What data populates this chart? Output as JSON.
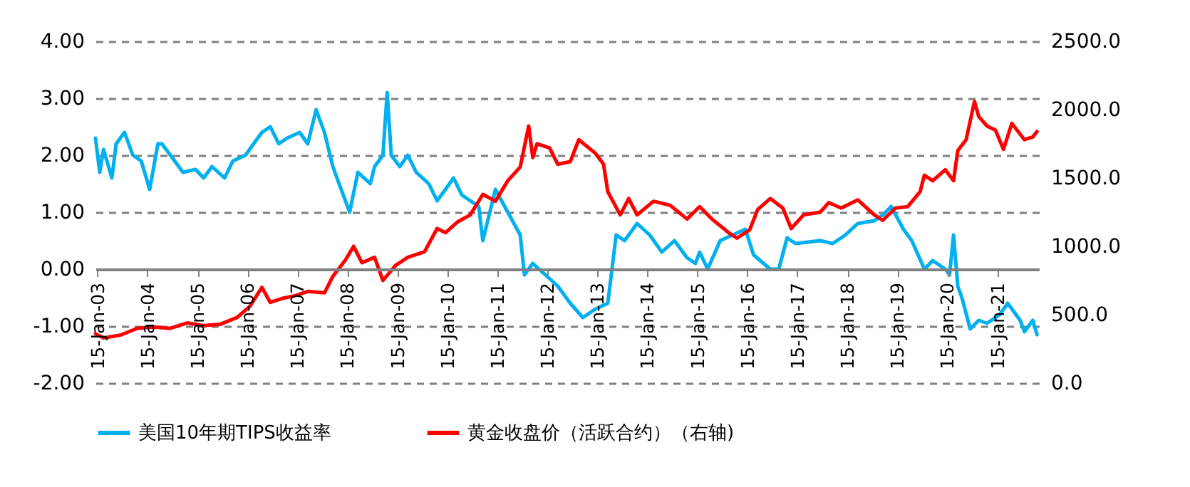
{
  "chart_data": {
    "type": "line",
    "grid": "y",
    "legend": "bottom",
    "line_style": "solid",
    "marker": "none",
    "xlim": [
      "2003-01-01",
      "2021-11-15"
    ],
    "xticks": [
      {
        "value": "2003-01-15",
        "label": "15-Jan-03"
      },
      {
        "value": "2004-01-15",
        "label": "15-Jan-04"
      },
      {
        "value": "2005-01-15",
        "label": "15-Jan-05"
      },
      {
        "value": "2006-01-15",
        "label": "15-Jan-06"
      },
      {
        "value": "2007-01-15",
        "label": "15-Jan-07"
      },
      {
        "value": "2008-01-15",
        "label": "15-Jan-08"
      },
      {
        "value": "2009-01-15",
        "label": "15-Jan-09"
      },
      {
        "value": "2010-01-15",
        "label": "15-Jan-10"
      },
      {
        "value": "2011-01-15",
        "label": "15-Jan-11"
      },
      {
        "value": "2012-01-15",
        "label": "15-Jan-12"
      },
      {
        "value": "2013-01-15",
        "label": "15-Jan-13"
      },
      {
        "value": "2014-01-15",
        "label": "15-Jan-14"
      },
      {
        "value": "2015-01-15",
        "label": "15-Jan-15"
      },
      {
        "value": "2016-01-15",
        "label": "15-Jan-16"
      },
      {
        "value": "2017-01-15",
        "label": "15-Jan-17"
      },
      {
        "value": "2018-01-15",
        "label": "15-Jan-18"
      },
      {
        "value": "2019-01-15",
        "label": "15-Jan-19"
      },
      {
        "value": "2020-01-15",
        "label": "15-Jan-20"
      },
      {
        "value": "2021-01-15",
        "label": "15-Jan-21"
      }
    ],
    "ylim": [
      -2,
      4
    ],
    "yticks": [
      {
        "value": -2,
        "label": "-2.00"
      },
      {
        "value": -1,
        "label": "-1.00"
      },
      {
        "value": 0,
        "label": "0.00"
      },
      {
        "value": 1,
        "label": "1.00"
      },
      {
        "value": 2,
        "label": "2.00"
      },
      {
        "value": 3,
        "label": "3.00"
      },
      {
        "value": 4,
        "label": "4.00"
      }
    ],
    "y2lim": [
      0,
      2500
    ],
    "y2ticks": [
      {
        "value": 0,
        "label": "0.0"
      },
      {
        "value": 500,
        "label": "500.0"
      },
      {
        "value": 1000,
        "label": "1000.0"
      },
      {
        "value": 1500,
        "label": "1500.0"
      },
      {
        "value": 2000,
        "label": "2000.0"
      },
      {
        "value": 2500,
        "label": "2500.0"
      }
    ],
    "series": [
      {
        "name": "美国10年期TIPS收益率",
        "color": "#00b0f0",
        "x": [
          "2003-01",
          "2003-02",
          "2003-03",
          "2003-05",
          "2003-06",
          "2003-08",
          "2003-10",
          "2003-12",
          "2004-02",
          "2004-04",
          "2004-05",
          "2004-08",
          "2004-10",
          "2005-01",
          "2005-03",
          "2005-05",
          "2005-08",
          "2005-10",
          "2006-01",
          "2006-03",
          "2006-05",
          "2006-07",
          "2006-09",
          "2006-11",
          "2007-02",
          "2007-04",
          "2007-06",
          "2007-08",
          "2007-10",
          "2007-12",
          "2008-02",
          "2008-04",
          "2008-07",
          "2008-08",
          "2008-10",
          "2008-11",
          "2008-12",
          "2009-02",
          "2009-04",
          "2009-06",
          "2009-09",
          "2009-11",
          "2010-01",
          "2010-03",
          "2010-05",
          "2010-09",
          "2010-10",
          "2011-01",
          "2011-04",
          "2011-07",
          "2011-08",
          "2011-10",
          "2012-01",
          "2012-04",
          "2012-07",
          "2012-10",
          "2013-01",
          "2013-04",
          "2013-06",
          "2013-08",
          "2013-11",
          "2014-02",
          "2014-05",
          "2014-08",
          "2014-11",
          "2015-01",
          "2015-02",
          "2015-04",
          "2015-07",
          "2015-10",
          "2016-01",
          "2016-03",
          "2016-07",
          "2016-09",
          "2016-11",
          "2017-01",
          "2017-07",
          "2017-10",
          "2018-01",
          "2018-04",
          "2018-08",
          "2018-10",
          "2018-12",
          "2019-03",
          "2019-05",
          "2019-08",
          "2019-10",
          "2020-01",
          "2020-02",
          "2020-03",
          "2020-04",
          "2020-05",
          "2020-07",
          "2020-09",
          "2020-11",
          "2021-02",
          "2021-04",
          "2021-07",
          "2021-08",
          "2021-10",
          "2021-11"
        ],
        "values": [
          2.3,
          1.7,
          2.1,
          1.6,
          2.2,
          2.4,
          2.0,
          1.9,
          1.4,
          2.2,
          2.2,
          1.9,
          1.7,
          1.75,
          1.6,
          1.8,
          1.6,
          1.9,
          2.0,
          2.2,
          2.4,
          2.5,
          2.2,
          2.3,
          2.4,
          2.2,
          2.8,
          2.4,
          1.8,
          1.4,
          1.0,
          1.7,
          1.5,
          1.8,
          2.0,
          3.1,
          2.0,
          1.8,
          2.0,
          1.7,
          1.5,
          1.2,
          1.4,
          1.6,
          1.3,
          1.1,
          0.5,
          1.4,
          1.0,
          0.6,
          -0.1,
          0.1,
          -0.1,
          -0.3,
          -0.6,
          -0.85,
          -0.7,
          -0.6,
          0.6,
          0.5,
          0.8,
          0.6,
          0.3,
          0.5,
          0.2,
          0.1,
          0.3,
          0.0,
          0.5,
          0.6,
          0.7,
          0.25,
          0.0,
          0.0,
          0.55,
          0.45,
          0.5,
          0.45,
          0.6,
          0.8,
          0.85,
          0.95,
          1.1,
          0.7,
          0.5,
          0.0,
          0.15,
          0.0,
          -0.1,
          0.6,
          -0.3,
          -0.5,
          -1.05,
          -0.9,
          -0.95,
          -0.8,
          -0.6,
          -0.9,
          -1.1,
          -0.9,
          -1.15
        ]
      },
      {
        "name": "黄金收盘价（活跃合约）（右轴)",
        "color": "#ff0000",
        "axis": "y2",
        "x": [
          "2003-01",
          "2003-03",
          "2003-07",
          "2003-11",
          "2004-03",
          "2004-07",
          "2004-11",
          "2005-03",
          "2005-07",
          "2005-11",
          "2006-02",
          "2006-05",
          "2006-07",
          "2006-10",
          "2007-01",
          "2007-04",
          "2007-08",
          "2007-10",
          "2008-01",
          "2008-03",
          "2008-05",
          "2008-08",
          "2008-10",
          "2009-01",
          "2009-04",
          "2009-08",
          "2009-11",
          "2010-01",
          "2010-04",
          "2010-07",
          "2010-10",
          "2011-01",
          "2011-04",
          "2011-07",
          "2011-09",
          "2011-10",
          "2011-11",
          "2012-02",
          "2012-04",
          "2012-07",
          "2012-09",
          "2013-01",
          "2013-03",
          "2013-04",
          "2013-07",
          "2013-09",
          "2013-11",
          "2014-03",
          "2014-07",
          "2014-11",
          "2015-02",
          "2015-05",
          "2015-09",
          "2015-11",
          "2016-02",
          "2016-04",
          "2016-07",
          "2016-10",
          "2016-12",
          "2017-03",
          "2017-07",
          "2017-09",
          "2017-12",
          "2018-04",
          "2018-08",
          "2018-10",
          "2019-01",
          "2019-04",
          "2019-07",
          "2019-08",
          "2019-10",
          "2020-01",
          "2020-03",
          "2020-04",
          "2020-06",
          "2020-08",
          "2020-09",
          "2020-11",
          "2021-01",
          "2021-03",
          "2021-05",
          "2021-08",
          "2021-10",
          "2021-11"
        ],
        "values": [
          360,
          330,
          350,
          400,
          410,
          400,
          440,
          420,
          430,
          480,
          560,
          700,
          590,
          620,
          640,
          670,
          660,
          780,
          900,
          1000,
          880,
          920,
          750,
          860,
          920,
          960,
          1130,
          1100,
          1180,
          1230,
          1380,
          1330,
          1480,
          1580,
          1880,
          1650,
          1750,
          1720,
          1600,
          1620,
          1780,
          1680,
          1600,
          1400,
          1230,
          1350,
          1230,
          1330,
          1300,
          1200,
          1290,
          1200,
          1100,
          1060,
          1120,
          1270,
          1350,
          1280,
          1130,
          1230,
          1250,
          1320,
          1280,
          1340,
          1230,
          1190,
          1280,
          1290,
          1400,
          1520,
          1480,
          1560,
          1480,
          1700,
          1780,
          2060,
          1950,
          1880,
          1850,
          1710,
          1900,
          1780,
          1800,
          1840
        ]
      }
    ]
  }
}
